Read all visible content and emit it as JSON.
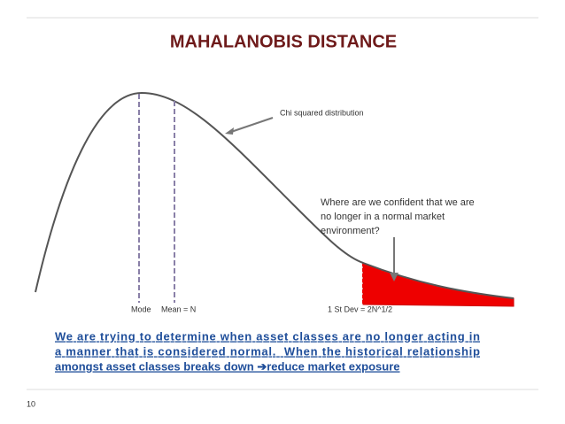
{
  "header": {
    "title": "MAHALANOBIS DISTANCE"
  },
  "annotations": {
    "curve": "Chi squared distribution",
    "question": [
      "Where are we confident that we are",
      "no longer in a normal market",
      "environment?"
    ]
  },
  "labels": {
    "mode": "Mode",
    "mean": "Mean = N",
    "st_dev": "1 St Dev = 2N^1/2"
  },
  "body": [
    "We are trying to determine when asset classes are no longer acting in",
    "a manner that is considered normal.  When the historical relationship",
    "amongst asset classes breaks down ➔reduce market exposure"
  ],
  "footer": {
    "page_number": "10"
  }
}
